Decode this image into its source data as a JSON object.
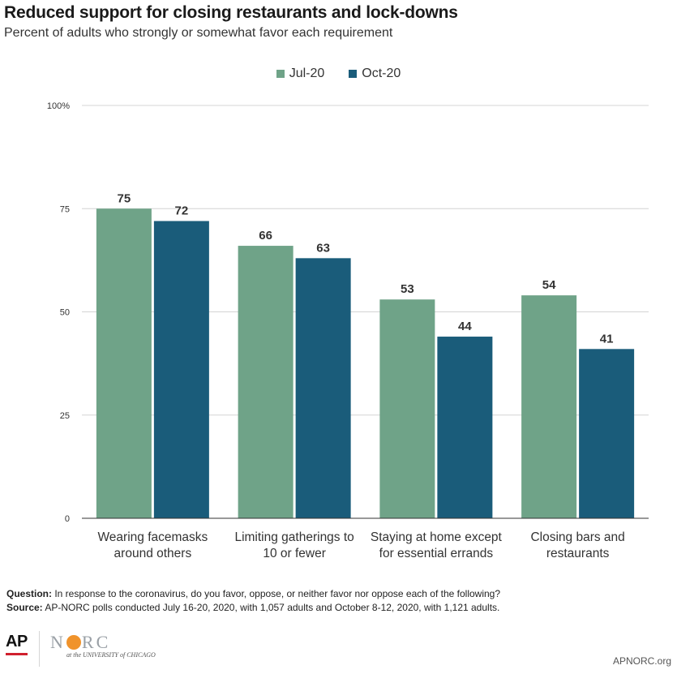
{
  "title": "Reduced support for closing restaurants and lock-downs",
  "subtitle": "Percent of adults who strongly or somewhat favor each requirement",
  "colors": {
    "jul": "#6fa388",
    "oct": "#1a5c7a",
    "grid": "#d4d4d4",
    "axis": "#333333"
  },
  "chart_data": {
    "type": "bar",
    "categories": [
      [
        "Wearing facemasks",
        "around others"
      ],
      [
        "Limiting gatherings to",
        "10 or fewer"
      ],
      [
        "Staying at home except",
        "for essential errands"
      ],
      [
        "Closing bars and",
        "restaurants"
      ]
    ],
    "series": [
      {
        "name": "Jul-20",
        "values": [
          75,
          66,
          53,
          54
        ]
      },
      {
        "name": "Oct-20",
        "values": [
          72,
          63,
          44,
          41
        ]
      }
    ],
    "ylim": [
      0,
      100
    ],
    "yticks": [
      {
        "value": 0,
        "label": "0"
      },
      {
        "value": 25,
        "label": "25"
      },
      {
        "value": 50,
        "label": "50"
      },
      {
        "value": 75,
        "label": "75"
      },
      {
        "value": 100,
        "label": "100%"
      }
    ],
    "legend_position": "top-center",
    "grid": true
  },
  "footer": {
    "question_label": "Question:",
    "question_text": " In response to the coronavirus, do you favor, oppose, or neither favor nor oppose each of the following?",
    "source_label": "Source:",
    "source_text": " AP-NORC polls conducted July 16-20, 2020, with 1,057 adults and October 8-12, 2020, with 1,121 adults."
  },
  "logos": {
    "ap": "AP",
    "norc_left": "N",
    "norc_right": "RC",
    "uchicago": "at the UNIVERSITY of CHICAGO"
  },
  "site": "APNORC.org"
}
